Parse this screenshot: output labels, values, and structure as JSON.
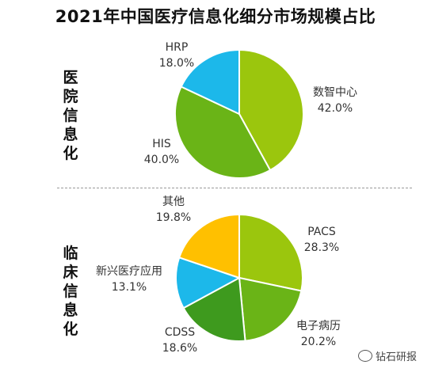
{
  "title": "2021年中国医疗信息化细分市场规模占比",
  "watermark": "钻石研报",
  "colors": {
    "yellow_green": "#9BC60D",
    "green": "#6AB417",
    "dark_green": "#3E9A1E",
    "cyan": "#1CB8EA",
    "yellow": "#FFC000"
  },
  "chart_data": [
    {
      "type": "pie",
      "section_label": "医院信息化",
      "section_label_chars": [
        "医",
        "院",
        "信",
        "息",
        "化"
      ],
      "slices": [
        {
          "name": "数智中心",
          "value": 42.0,
          "pct_label": "42.0%",
          "color": "#9BC60D"
        },
        {
          "name": "HIS",
          "value": 40.0,
          "pct_label": "40.0%",
          "color": "#6AB417"
        },
        {
          "name": "HRP",
          "value": 18.0,
          "pct_label": "18.0%",
          "color": "#1CB8EA"
        }
      ]
    },
    {
      "type": "pie",
      "section_label": "临床信息化",
      "section_label_chars": [
        "临",
        "床",
        "信",
        "息",
        "化"
      ],
      "slices": [
        {
          "name": "PACS",
          "value": 28.3,
          "pct_label": "28.3%",
          "color": "#9BC60D"
        },
        {
          "name": "电子病历",
          "value": 20.2,
          "pct_label": "20.2%",
          "color": "#6AB417"
        },
        {
          "name": "CDSS",
          "value": 18.6,
          "pct_label": "18.6%",
          "color": "#3E9A1E"
        },
        {
          "name": "新兴医疗应用",
          "value": 13.1,
          "pct_label": "13.1%",
          "color": "#1CB8EA"
        },
        {
          "name": "其他",
          "value": 19.8,
          "pct_label": "19.8%",
          "color": "#FFC000"
        }
      ]
    }
  ]
}
